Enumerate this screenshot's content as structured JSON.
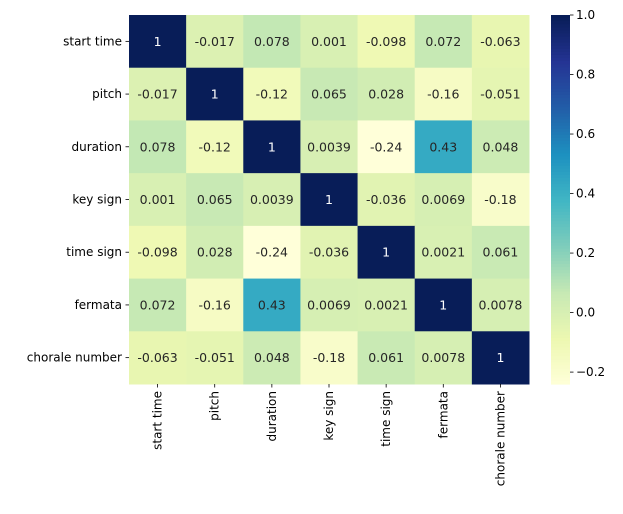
{
  "chart_data": {
    "type": "heatmap",
    "title": "",
    "xlabel": "",
    "ylabel": "",
    "rows": [
      "start time",
      "pitch",
      "duration",
      "key sign",
      "time sign",
      "fermata",
      "chorale number"
    ],
    "columns": [
      "start time",
      "pitch",
      "duration",
      "key sign",
      "time sign",
      "fermata",
      "chorale number"
    ],
    "values": [
      [
        1,
        -0.017,
        0.078,
        0.001,
        -0.098,
        0.072,
        -0.063
      ],
      [
        -0.017,
        1,
        -0.12,
        0.065,
        0.028,
        -0.16,
        -0.051
      ],
      [
        0.078,
        -0.12,
        1,
        0.0039,
        -0.24,
        0.43,
        0.048
      ],
      [
        0.001,
        0.065,
        0.0039,
        1,
        -0.036,
        0.0069,
        -0.18
      ],
      [
        -0.098,
        0.028,
        -0.24,
        -0.036,
        1,
        0.0021,
        0.061
      ],
      [
        0.072,
        -0.16,
        0.43,
        0.0069,
        0.0021,
        1,
        0.0078
      ],
      [
        -0.063,
        -0.051,
        0.048,
        -0.18,
        0.061,
        0.0078,
        1
      ]
    ],
    "labels": [
      [
        "1",
        "-0.017",
        "0.078",
        "0.001",
        "-0.098",
        "0.072",
        "-0.063"
      ],
      [
        "-0.017",
        "1",
        "-0.12",
        "0.065",
        "0.028",
        "-0.16",
        "-0.051"
      ],
      [
        "0.078",
        "-0.12",
        "1",
        "0.0039",
        "-0.24",
        "0.43",
        "0.048"
      ],
      [
        "0.001",
        "0.065",
        "0.0039",
        "1",
        "-0.036",
        "0.0069",
        "-0.18"
      ],
      [
        "-0.098",
        "0.028",
        "-0.24",
        "-0.036",
        "1",
        "0.0021",
        "0.061"
      ],
      [
        "0.072",
        "-0.16",
        "0.43",
        "0.0069",
        "0.0021",
        "1",
        "0.0078"
      ],
      [
        "-0.063",
        "-0.051",
        "0.048",
        "-0.18",
        "0.061",
        "0.0078",
        "1"
      ]
    ],
    "colormap": "YlGnBu",
    "vmin": -0.24,
    "vmax": 1,
    "colorbar": {
      "ticks": [
        -0.2,
        0,
        0.2,
        0.4,
        0.6,
        0.8,
        1
      ],
      "tick_labels": [
        "−0.2",
        "0.0",
        "0.2",
        "0.4",
        "0.6",
        "0.8",
        "1.0"
      ]
    },
    "grid": false,
    "legend": "colorbar-right"
  }
}
